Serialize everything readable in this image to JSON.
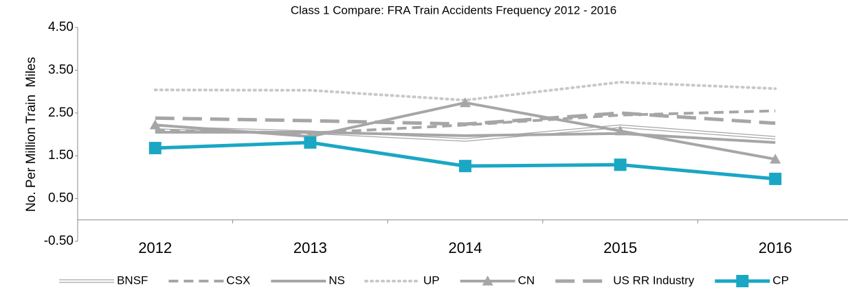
{
  "chart_data": {
    "type": "line",
    "title": "Class 1 Compare: FRA Train Accidents Frequency 2012 - 2016",
    "y_label": "No. Per Million Train  Miles",
    "categories": [
      "2012",
      "2013",
      "2014",
      "2015",
      "2016"
    ],
    "ylim": [
      -0.5,
      4.5
    ],
    "yticks": [
      {
        "value": -0.5,
        "label": "-0.50"
      },
      {
        "value": 0.5,
        "label": "0.50"
      },
      {
        "value": 1.5,
        "label": "1.50"
      },
      {
        "value": 2.5,
        "label": "2.50"
      },
      {
        "value": 3.5,
        "label": "3.50"
      },
      {
        "value": 4.5,
        "label": "4.50"
      }
    ],
    "series": [
      {
        "name": "BNSF",
        "color": "#a6a6a6",
        "style": "double",
        "values": [
          2.16,
          2.05,
          1.87,
          2.19,
          1.92
        ]
      },
      {
        "name": "CSX",
        "color": "#a6a6a6",
        "style": "dashed",
        "values": [
          2.1,
          2.03,
          2.22,
          2.45,
          2.55
        ]
      },
      {
        "name": "NS",
        "color": "#a6a6a6",
        "style": "solid",
        "values": [
          2.05,
          2.05,
          1.97,
          2.02,
          1.81
        ]
      },
      {
        "name": "UP",
        "color": "#c8c8c8",
        "style": "dotted",
        "values": [
          3.04,
          3.03,
          2.8,
          3.22,
          3.07
        ]
      },
      {
        "name": "CN",
        "color": "#a6a6a6",
        "style": "solid",
        "marker": "triangle",
        "values": [
          2.22,
          1.95,
          2.74,
          2.08,
          1.42
        ]
      },
      {
        "name": "US RR Industry",
        "color": "#a6a6a6",
        "style": "long-dash",
        "values": [
          2.38,
          2.32,
          2.24,
          2.5,
          2.26
        ]
      },
      {
        "name": "CP",
        "color": "#1aa7c4",
        "style": "thick",
        "marker": "square",
        "values": [
          1.68,
          1.81,
          1.26,
          1.29,
          0.96
        ]
      }
    ]
  }
}
